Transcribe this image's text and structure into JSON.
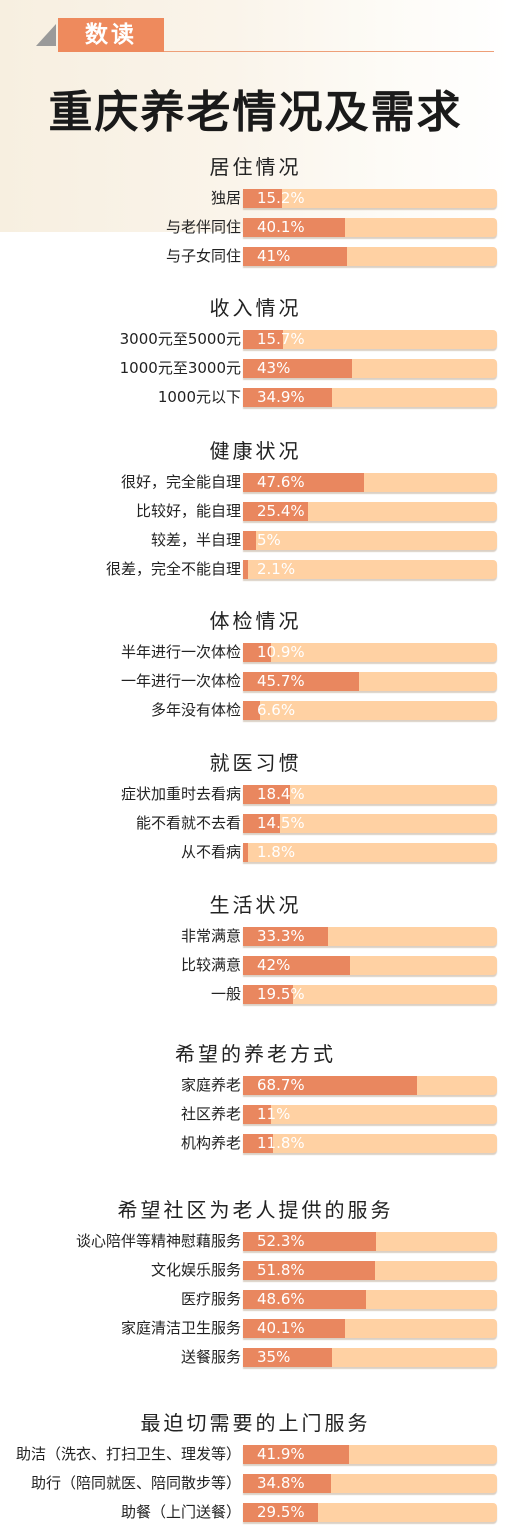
{
  "header": {
    "tag": "数读",
    "title": "重庆养老情况及需求"
  },
  "chart_data": [
    {
      "type": "bar",
      "title": "居住情况",
      "unit": "%",
      "categories": [
        "独居",
        "与老伴同住",
        "与子女同住"
      ],
      "values": [
        15.2,
        40.1,
        41
      ],
      "value_labels": [
        "15.2%",
        "40.1%",
        "41%"
      ]
    },
    {
      "type": "bar",
      "title": "收入情况",
      "unit": "%",
      "categories": [
        "3000元至5000元",
        "1000元至3000元",
        "1000元以下"
      ],
      "values": [
        15.7,
        43,
        34.9
      ],
      "value_labels": [
        "15.7%",
        "43%",
        "34.9%"
      ]
    },
    {
      "type": "bar",
      "title": "健康状况",
      "unit": "%",
      "categories": [
        "很好，完全能自理",
        "比较好，能自理",
        "较差，半自理",
        "很差，完全不能自理"
      ],
      "values": [
        47.6,
        25.4,
        5,
        2.1
      ],
      "value_labels": [
        "47.6%",
        "25.4%",
        "5%",
        "2.1%"
      ]
    },
    {
      "type": "bar",
      "title": "体检情况",
      "unit": "%",
      "categories": [
        "半年进行一次体检",
        "一年进行一次体检",
        "多年没有体检"
      ],
      "values": [
        10.9,
        45.7,
        6.6
      ],
      "value_labels": [
        "10.9%",
        "45.7%",
        "6.6%"
      ]
    },
    {
      "type": "bar",
      "title": "就医习惯",
      "unit": "%",
      "categories": [
        "症状加重时去看病",
        "能不看就不去看",
        "从不看病"
      ],
      "values": [
        18.4,
        14.5,
        1.8
      ],
      "value_labels": [
        "18.4%",
        "14.5%",
        "1.8%"
      ]
    },
    {
      "type": "bar",
      "title": "生活状况",
      "unit": "%",
      "categories": [
        "非常满意",
        "比较满意",
        "一般"
      ],
      "values": [
        33.3,
        42,
        19.5
      ],
      "value_labels": [
        "33.3%",
        "42%",
        "19.5%"
      ]
    },
    {
      "type": "bar",
      "title": "希望的养老方式",
      "unit": "%",
      "categories": [
        "家庭养老",
        "社区养老",
        "机构养老"
      ],
      "values": [
        68.7,
        11,
        11.8
      ],
      "value_labels": [
        "68.7%",
        "11%",
        "11.8%"
      ]
    },
    {
      "type": "bar",
      "title": "希望社区为老人提供的服务",
      "unit": "%",
      "categories": [
        "谈心陪伴等精神慰藉服务",
        "文化娱乐服务",
        "医疗服务",
        "家庭清洁卫生服务",
        "送餐服务"
      ],
      "values": [
        52.3,
        51.8,
        48.6,
        40.1,
        35
      ],
      "value_labels": [
        "52.3%",
        "51.8%",
        "48.6%",
        "40.1%",
        "35%"
      ]
    },
    {
      "type": "bar",
      "title": "最迫切需要的上门服务",
      "unit": "%",
      "categories": [
        "助洁（洗衣、打扫卫生、理发等）",
        "助行（陪同就医、陪同散步等）",
        "助餐（上门送餐）"
      ],
      "values": [
        41.9,
        34.8,
        29.5
      ],
      "value_labels": [
        "41.9%",
        "34.8%",
        "29.5%"
      ]
    }
  ]
}
